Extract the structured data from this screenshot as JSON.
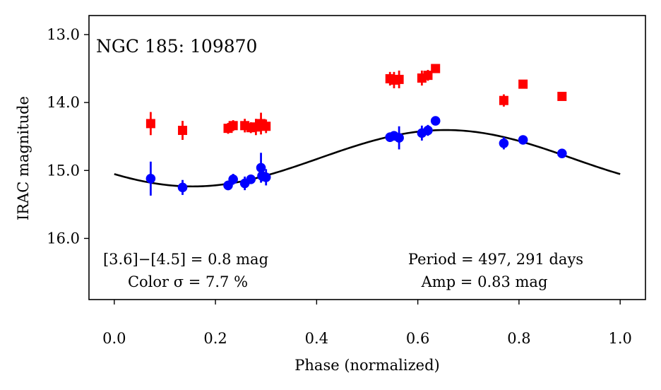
{
  "chart_data": {
    "type": "scatter",
    "title": "NGC 185:  109870",
    "xlabel": "Phase (normalized)",
    "ylabel": "IRAC magnitude",
    "xlim": [
      -0.05,
      1.05
    ],
    "ylim": [
      16.9,
      12.72
    ],
    "y_inverted": true,
    "x_ticks": [
      0.0,
      0.2,
      0.4,
      0.6,
      0.8,
      1.0
    ],
    "x_tick_labels": [
      "0.0",
      "0.2",
      "0.4",
      "0.6",
      "0.8",
      "1.0"
    ],
    "y_ticks": [
      13.0,
      14.0,
      15.0,
      16.0
    ],
    "y_tick_labels": [
      "13.0",
      "14.0",
      "15.0",
      "16.0"
    ],
    "grid": false,
    "colors": {
      "red": "#ff0000",
      "blue": "#0000ff",
      "curve": "#000000"
    },
    "series": [
      {
        "name": "[4.5] (red squares)",
        "color": "#ff0000",
        "marker": "square",
        "points": [
          {
            "x": 0.072,
            "y": 14.31,
            "err": 0.17
          },
          {
            "x": 0.135,
            "y": 14.41,
            "err": 0.14
          },
          {
            "x": 0.225,
            "y": 14.38,
            "err": 0.08
          },
          {
            "x": 0.235,
            "y": 14.34,
            "err": 0.08
          },
          {
            "x": 0.258,
            "y": 14.34,
            "err": 0.1
          },
          {
            "x": 0.27,
            "y": 14.37,
            "err": 0.08
          },
          {
            "x": 0.28,
            "y": 14.36,
            "err": 0.12
          },
          {
            "x": 0.29,
            "y": 14.31,
            "err": 0.16
          },
          {
            "x": 0.3,
            "y": 14.35,
            "err": 0.1
          },
          {
            "x": 0.545,
            "y": 13.65,
            "err": 0.1
          },
          {
            "x": 0.553,
            "y": 13.67,
            "err": 0.12
          },
          {
            "x": 0.563,
            "y": 13.66,
            "err": 0.13
          },
          {
            "x": 0.608,
            "y": 13.64,
            "err": 0.11
          },
          {
            "x": 0.62,
            "y": 13.6,
            "err": 0.08
          },
          {
            "x": 0.635,
            "y": 13.5,
            "err": 0.06
          },
          {
            "x": 0.77,
            "y": 13.97,
            "err": 0.09
          },
          {
            "x": 0.808,
            "y": 13.73,
            "err": 0.06
          },
          {
            "x": 0.885,
            "y": 13.91,
            "err": 0.05
          }
        ]
      },
      {
        "name": "[3.6] (blue circles)",
        "color": "#0000ff",
        "marker": "circle",
        "points": [
          {
            "x": 0.072,
            "y": 15.12,
            "err": 0.25
          },
          {
            "x": 0.135,
            "y": 15.25,
            "err": 0.11
          },
          {
            "x": 0.225,
            "y": 15.22,
            "err": 0.07
          },
          {
            "x": 0.235,
            "y": 15.13,
            "err": 0.08
          },
          {
            "x": 0.258,
            "y": 15.19,
            "err": 0.1
          },
          {
            "x": 0.27,
            "y": 15.13,
            "err": 0.07
          },
          {
            "x": 0.29,
            "y": 14.96,
            "err": 0.22
          },
          {
            "x": 0.292,
            "y": 15.08,
            "err": 0.08
          },
          {
            "x": 0.3,
            "y": 15.1,
            "err": 0.12
          },
          {
            "x": 0.545,
            "y": 14.51,
            "err": 0.07
          },
          {
            "x": 0.553,
            "y": 14.49,
            "err": 0.07
          },
          {
            "x": 0.563,
            "y": 14.52,
            "err": 0.17
          },
          {
            "x": 0.608,
            "y": 14.45,
            "err": 0.11
          },
          {
            "x": 0.62,
            "y": 14.41,
            "err": 0.08
          },
          {
            "x": 0.635,
            "y": 14.27,
            "err": 0.06
          },
          {
            "x": 0.77,
            "y": 14.6,
            "err": 0.09
          },
          {
            "x": 0.808,
            "y": 14.55,
            "err": 0.05
          },
          {
            "x": 0.885,
            "y": 14.75,
            "err": 0.05
          }
        ]
      }
    ],
    "fit_curve": {
      "name": "sinusoidal fit",
      "color": "#000000",
      "mean": 14.82,
      "amplitude": 0.415,
      "phase_of_minimum_brightness": 0.155,
      "x_range": [
        0.0,
        1.0
      ]
    },
    "annotations": {
      "color_line1": "[3.6]−[4.5] = 0.8 mag",
      "color_line2": "Color σ = 7.7 %",
      "period": "Period = 497, 291 days",
      "amp": "Amp = 0.83 mag"
    }
  }
}
